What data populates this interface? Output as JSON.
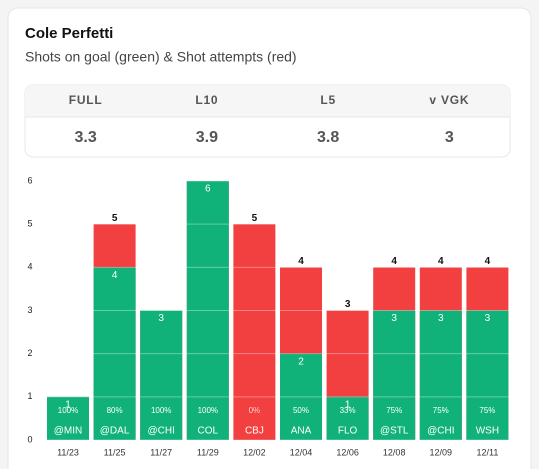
{
  "header": {
    "title": "Cole Perfetti",
    "subtitle": "Shots on goal (green) & Shot attempts (red)"
  },
  "stats": {
    "headers": [
      "FULL",
      "L10",
      "L5",
      "v VGK"
    ],
    "values": [
      3.3,
      3.9,
      3.8,
      3
    ]
  },
  "chart_data": {
    "type": "bar",
    "categories": [
      "11/23",
      "11/25",
      "11/27",
      "11/29",
      "12/02",
      "12/04",
      "12/06",
      "12/08",
      "12/09",
      "12/11"
    ],
    "opponents": [
      "@MIN",
      "@DAL",
      "@CHI",
      "COL",
      "CBJ",
      "ANA",
      "FLO",
      "@STL",
      "@CHI",
      "WSH"
    ],
    "attempts": {
      "color": "#f23f3f",
      "values": [
        1,
        5,
        3,
        6,
        5,
        4,
        3,
        4,
        4,
        4
      ]
    },
    "shots_on_goal": {
      "color": "#10b27a",
      "values": [
        1,
        4,
        3,
        6,
        0,
        2,
        1,
        3,
        3,
        3
      ]
    },
    "shot_pct": [
      "100%",
      "80%",
      "100%",
      "100%",
      "0%",
      "50%",
      "33%",
      "75%",
      "75%",
      "75%"
    ],
    "ylim": [
      0,
      6
    ],
    "yticks": [
      0,
      1,
      2,
      3,
      4,
      5,
      6
    ],
    "grid": true
  }
}
